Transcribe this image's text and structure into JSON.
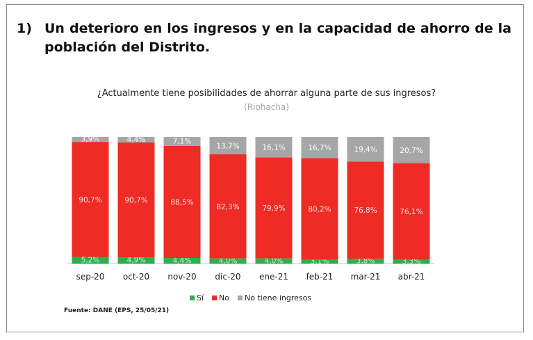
{
  "heading": {
    "number": "1)",
    "line1": "Un deterioro en los ingresos y en la capacidad de ahorro de la",
    "line2": "población del Distrito."
  },
  "source": "Fuente: DANE (EPS, 25/05/21)",
  "chart_data": {
    "type": "bar",
    "stacked": true,
    "percent_stacked": true,
    "title": "¿Actualmente tiene posibilidades de ahorrar alguna parte de sus ingresos?",
    "subtitle": "(Riohacha)",
    "categories": [
      "sep-20",
      "oct-20",
      "nov-20",
      "dic-20",
      "ene-21",
      "feb-21",
      "mar-21",
      "abr-21"
    ],
    "series": [
      {
        "name": "Sí",
        "color": "#2eaf4a",
        "values": [
          5.2,
          4.9,
          4.4,
          4.0,
          4.0,
          3.1,
          3.8,
          3.3
        ],
        "labels": [
          "5,2%",
          "4,9%",
          "4,4%",
          "4,0%",
          "4,0%",
          "3,1%",
          "3,8%",
          "3,3%"
        ]
      },
      {
        "name": "No",
        "color": "#ee2b24",
        "values": [
          90.7,
          90.7,
          88.5,
          82.3,
          79.9,
          80.2,
          76.8,
          76.1
        ],
        "labels": [
          "90,7%",
          "90,7%",
          "88,5%",
          "82,3%",
          "79,9%",
          "80,2%",
          "76,8%",
          "76,1%"
        ]
      },
      {
        "name": "No tiene ingresos",
        "color": "#a6a6a6",
        "values": [
          3.9,
          4.4,
          7.1,
          13.7,
          16.1,
          16.7,
          19.4,
          20.7
        ],
        "labels": [
          "3,9%",
          "4,4%",
          "7,1%",
          "13,7%",
          "16,1%",
          "16,7%",
          "19,4%",
          "20,7%"
        ]
      }
    ],
    "legend_position": "bottom",
    "grid": false
  }
}
